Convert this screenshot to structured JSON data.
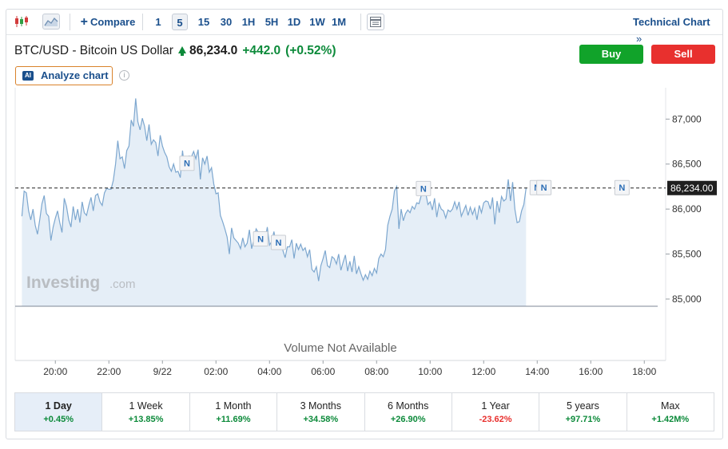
{
  "toolbar": {
    "compare_label": "Compare",
    "intervals": [
      {
        "label": "1",
        "selected": false
      },
      {
        "label": "5",
        "selected": true
      },
      {
        "label": "15",
        "selected": false
      },
      {
        "label": "30",
        "selected": false
      },
      {
        "label": "1H",
        "selected": false
      },
      {
        "label": "5H",
        "selected": false
      },
      {
        "label": "1D",
        "selected": false
      },
      {
        "label": "1W",
        "selected": false
      },
      {
        "label": "1M",
        "selected": false
      }
    ],
    "technical_chart_label": "Technical Chart",
    "icons": [
      "candlestick-icon",
      "area-chart-icon",
      "plus-icon",
      "table-icon",
      "double-chevron-right-icon"
    ]
  },
  "instrument": {
    "name": "BTC/USD - Bitcoin US Dollar",
    "price": "86,234.0",
    "change": "+442.0",
    "change_pct": "(+0.52%)",
    "change_color": "#0c8a3a"
  },
  "actions": {
    "buy_label": "Buy",
    "sell_label": "Sell",
    "buy_color": "#11a32a",
    "sell_color": "#e8302e",
    "analyze_label": "Analyze chart",
    "ai_badge": "AI",
    "info_glyph": "i"
  },
  "chart_data": {
    "type": "area",
    "x_ticks": [
      "20:00",
      "22:00",
      "9/22",
      "02:00",
      "04:00",
      "06:00",
      "08:00",
      "10:00",
      "12:00",
      "14:00",
      "16:00",
      "18:00"
    ],
    "y_ticks": [
      "85,000",
      "85,500",
      "86,000",
      "86,500",
      "87,000"
    ],
    "ylim": [
      84920,
      87260
    ],
    "current_price": 86234.0,
    "current_price_label": "86,234.00",
    "watermark": "Investing",
    "watermark_suffix": ".com",
    "volume_note": "Volume Not Available",
    "line_color": "#7da7cf",
    "fill_color": "#e5eef7",
    "series": [
      {
        "x_start": "18:45",
        "interval_minutes": 5,
        "values": [
          85920,
          86200,
          86180,
          85980,
          85880,
          86000,
          85820,
          85720,
          85880,
          86060,
          86150,
          85950,
          85920,
          85650,
          85800,
          85900,
          85980,
          85850,
          85740,
          86120,
          86030,
          85880,
          85800,
          86030,
          85880,
          86000,
          85850,
          86080,
          85960,
          85930,
          86040,
          86130,
          85980,
          86150,
          86170,
          86080,
          86040,
          86180,
          86230,
          86220,
          86220,
          86320,
          86500,
          86760,
          86560,
          86580,
          86450,
          86650,
          86700,
          86990,
          86920,
          87230,
          86970,
          86880,
          87010,
          86920,
          86760,
          86940,
          86720,
          86770,
          86740,
          86590,
          86820,
          86700,
          86630,
          86580,
          86470,
          86420,
          86500,
          86410,
          86420,
          86350,
          86650,
          86440,
          86500,
          86590,
          86580,
          86640,
          86560,
          86660,
          86330,
          86570,
          86500,
          86590,
          86410,
          86460,
          86280,
          86170,
          86180,
          85930,
          85860,
          85780,
          85690,
          85500,
          85790,
          85680,
          85650,
          85620,
          85560,
          85680,
          85580,
          85620,
          85770,
          85560,
          85660,
          85780,
          85740,
          85660,
          85740,
          85660,
          85800,
          85600,
          85640,
          85750,
          85600,
          85620,
          85680,
          85540,
          85460,
          85580,
          85580,
          85660,
          85450,
          85620,
          85550,
          85610,
          85540,
          85570,
          85470,
          85550,
          85330,
          85300,
          85360,
          85200,
          85370,
          85450,
          85540,
          85370,
          85350,
          85470,
          85450,
          85390,
          85500,
          85320,
          85410,
          85490,
          85310,
          85420,
          85300,
          85480,
          85280,
          85360,
          85280,
          85210,
          85270,
          85220,
          85310,
          85260,
          85340,
          85290,
          85450,
          85500,
          85470,
          85550,
          85820,
          85920,
          86000,
          86200,
          86250,
          85780,
          86000,
          85870,
          85950,
          85990,
          85960,
          86030,
          86000,
          86070,
          86060,
          86150,
          86220,
          86180,
          86050,
          86080,
          85990,
          86120,
          85910,
          86060,
          86000,
          85980,
          85900,
          85990,
          85970,
          86000,
          86080,
          86000,
          86080,
          85920,
          85980,
          86040,
          85930,
          86020,
          85940,
          86010,
          85880,
          86040,
          85960,
          86070,
          86090,
          86080,
          86000,
          86130,
          85830,
          86090,
          85960,
          86140,
          86090,
          86110,
          86330,
          86090,
          86300,
          86000,
          85850,
          85860,
          85980,
          86050,
          86230
        ]
      }
    ],
    "news_markers": [
      {
        "time": "00:55",
        "label": "N"
      },
      {
        "time": "03:40",
        "label": "N"
      },
      {
        "time": "04:20",
        "label": "N"
      },
      {
        "time": "09:45",
        "label": "N"
      },
      {
        "time": "14:00",
        "label": "N"
      },
      {
        "time": "14:15",
        "label": "N"
      },
      {
        "time": "17:10",
        "label": "N"
      }
    ]
  },
  "periods": [
    {
      "label": "1 Day",
      "change": "+0.45%",
      "direction": "up",
      "selected": true
    },
    {
      "label": "1 Week",
      "change": "+13.85%",
      "direction": "up",
      "selected": false
    },
    {
      "label": "1 Month",
      "change": "+11.69%",
      "direction": "up",
      "selected": false
    },
    {
      "label": "3 Months",
      "change": "+34.58%",
      "direction": "up",
      "selected": false
    },
    {
      "label": "6 Months",
      "change": "+26.90%",
      "direction": "up",
      "selected": false
    },
    {
      "label": "1 Year",
      "change": "-23.62%",
      "direction": "down",
      "selected": false
    },
    {
      "label": "5 years",
      "change": "+97.71%",
      "direction": "up",
      "selected": false
    },
    {
      "label": "Max",
      "change": "+1.42M%",
      "direction": "up",
      "selected": false
    }
  ]
}
